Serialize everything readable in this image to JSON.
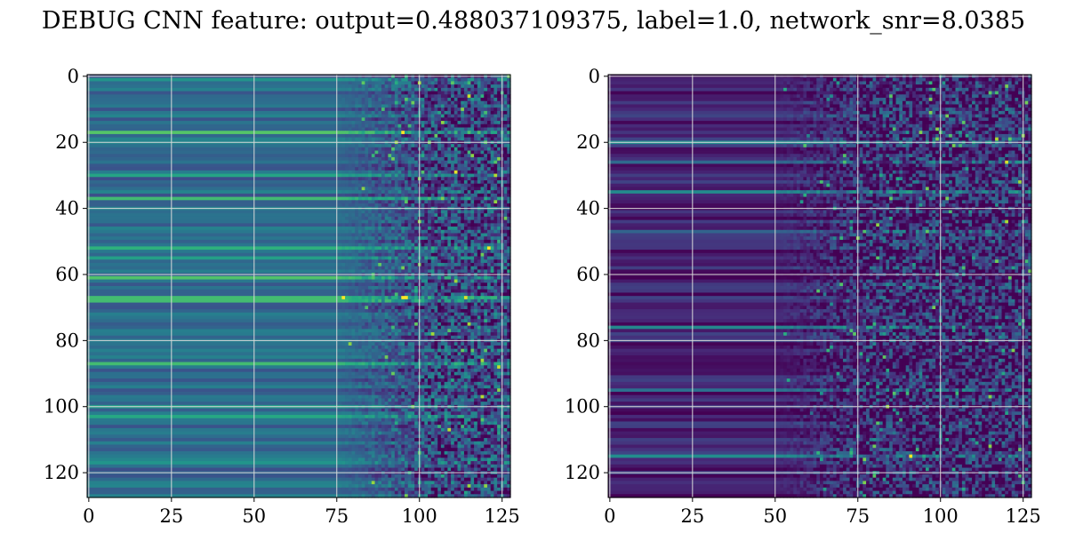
{
  "figure": {
    "title": "DEBUG CNN feature: output=0.488037109375, label=1.0, network_snr=8.0385"
  },
  "chart_data": [
    {
      "type": "heatmap",
      "title": "",
      "xlabel": "",
      "ylabel": "",
      "colormap": "viridis",
      "rows": 128,
      "cols": 128,
      "xlim": [
        0,
        127
      ],
      "ylim": [
        127,
        0
      ],
      "xticks": [
        0,
        25,
        50,
        75,
        100,
        125
      ],
      "yticks": [
        0,
        20,
        40,
        60,
        80,
        100,
        120
      ],
      "xtick_labels": [
        "0",
        "25",
        "50",
        "75",
        "100",
        "125"
      ],
      "ytick_labels": [
        "0",
        "20",
        "40",
        "60",
        "80",
        "100",
        "120"
      ],
      "grid": true,
      "grid_color": "#d9d9d9",
      "base_level": 0.35,
      "noise_onset_col": 75,
      "bright_rows": [
        1,
        17,
        30,
        37,
        52,
        55,
        61,
        67,
        68,
        87,
        100,
        103,
        117
      ]
    },
    {
      "type": "heatmap",
      "title": "",
      "xlabel": "",
      "ylabel": "",
      "colormap": "viridis",
      "rows": 128,
      "cols": 128,
      "xlim": [
        0,
        127
      ],
      "ylim": [
        127,
        0
      ],
      "xticks": [
        0,
        25,
        50,
        75,
        100,
        125
      ],
      "yticks": [
        0,
        20,
        40,
        60,
        80,
        100,
        120
      ],
      "xtick_labels": [
        "0",
        "25",
        "50",
        "75",
        "100",
        "125"
      ],
      "ytick_labels": [
        "0",
        "20",
        "40",
        "60",
        "80",
        "100",
        "120"
      ],
      "grid": true,
      "grid_color": "#d9d9d9",
      "base_level": 0.1,
      "noise_onset_col": 50,
      "bright_rows": [
        20,
        26,
        35,
        47,
        76,
        95,
        115
      ]
    }
  ]
}
